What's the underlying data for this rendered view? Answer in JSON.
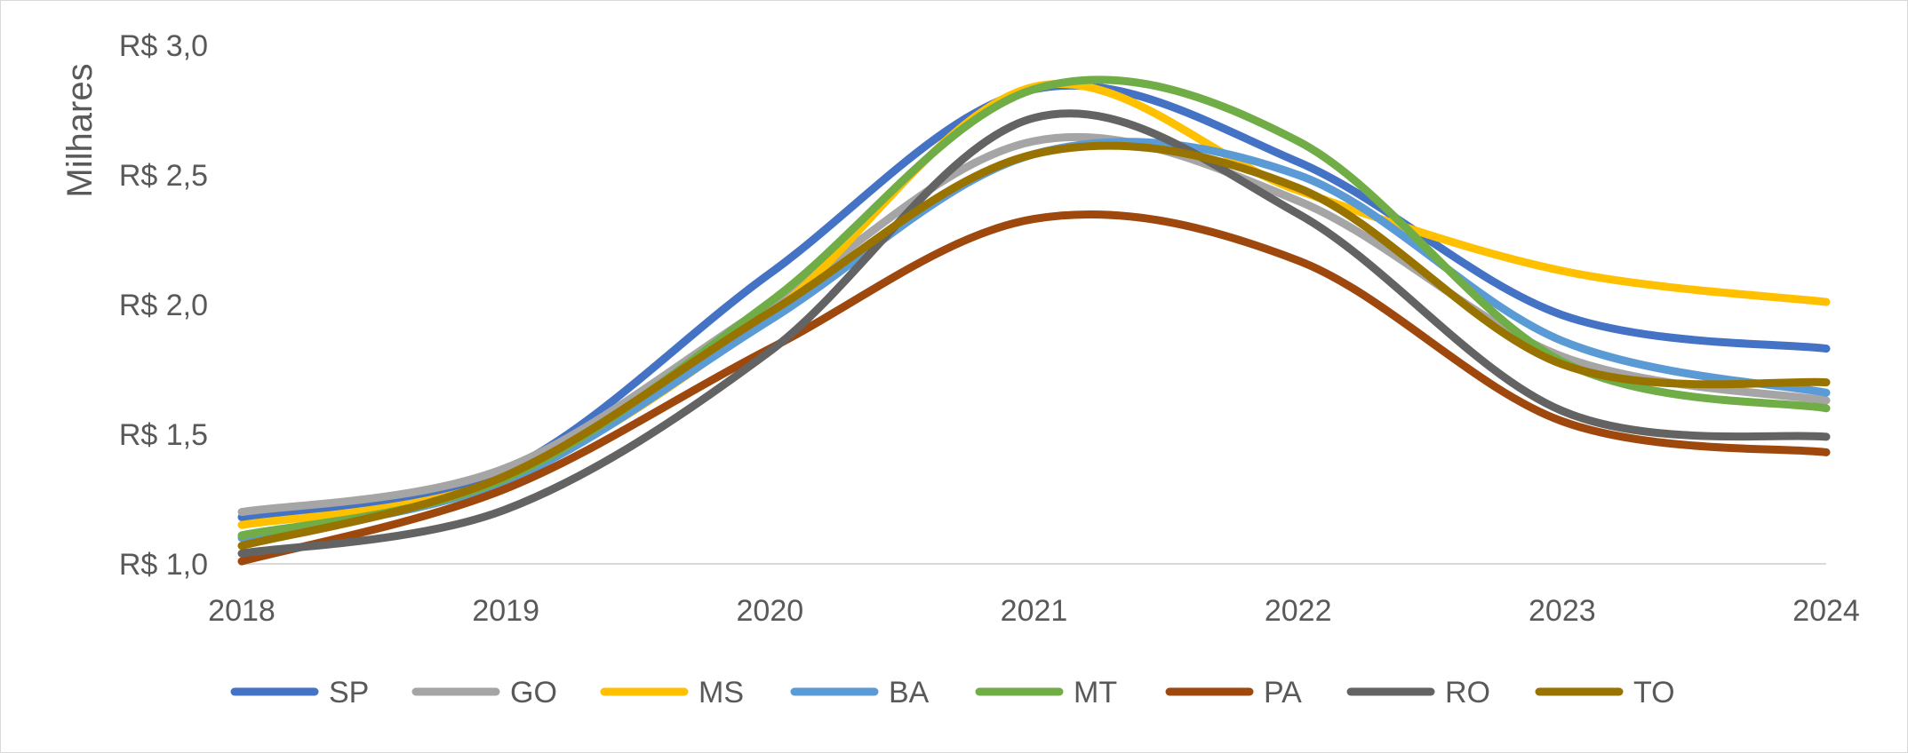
{
  "chart_data": {
    "type": "line",
    "title": "",
    "xlabel": "",
    "ylabel": "Milhares",
    "x": [
      "2018",
      "2019",
      "2020",
      "2021",
      "2022",
      "2023",
      "2024"
    ],
    "ylim": [
      1.0,
      3.0
    ],
    "yticks": [
      1.0,
      1.5,
      2.0,
      2.5,
      3.0
    ],
    "ytick_labels": [
      "R$ 1,0",
      "R$ 1,5",
      "R$ 2,0",
      "R$ 2,5",
      "R$ 3,0"
    ],
    "grid": false,
    "legend_position": "bottom",
    "series": [
      {
        "name": "SP",
        "color": "#4472C4",
        "values": [
          1.18,
          1.36,
          2.12,
          2.83,
          2.55,
          1.96,
          1.83
        ]
      },
      {
        "name": "GO",
        "color": "#A5A5A5",
        "values": [
          1.2,
          1.37,
          2.0,
          2.63,
          2.4,
          1.8,
          1.63
        ]
      },
      {
        "name": "MS",
        "color": "#FFC000",
        "values": [
          1.15,
          1.33,
          1.96,
          2.84,
          2.44,
          2.13,
          2.01
        ]
      },
      {
        "name": "BA",
        "color": "#5B9BD5",
        "values": [
          1.1,
          1.32,
          1.94,
          2.58,
          2.5,
          1.86,
          1.66
        ]
      },
      {
        "name": "MT",
        "color": "#70AD47",
        "values": [
          1.11,
          1.33,
          2.01,
          2.83,
          2.63,
          1.78,
          1.6
        ]
      },
      {
        "name": "PA",
        "color": "#9E480E",
        "values": [
          1.01,
          1.29,
          1.83,
          2.33,
          2.17,
          1.55,
          1.43
        ]
      },
      {
        "name": "RO",
        "color": "#636363",
        "values": [
          1.04,
          1.21,
          1.82,
          2.72,
          2.35,
          1.59,
          1.49
        ]
      },
      {
        "name": "TO",
        "color": "#997300",
        "values": [
          1.07,
          1.34,
          1.97,
          2.58,
          2.45,
          1.77,
          1.7
        ]
      }
    ]
  }
}
